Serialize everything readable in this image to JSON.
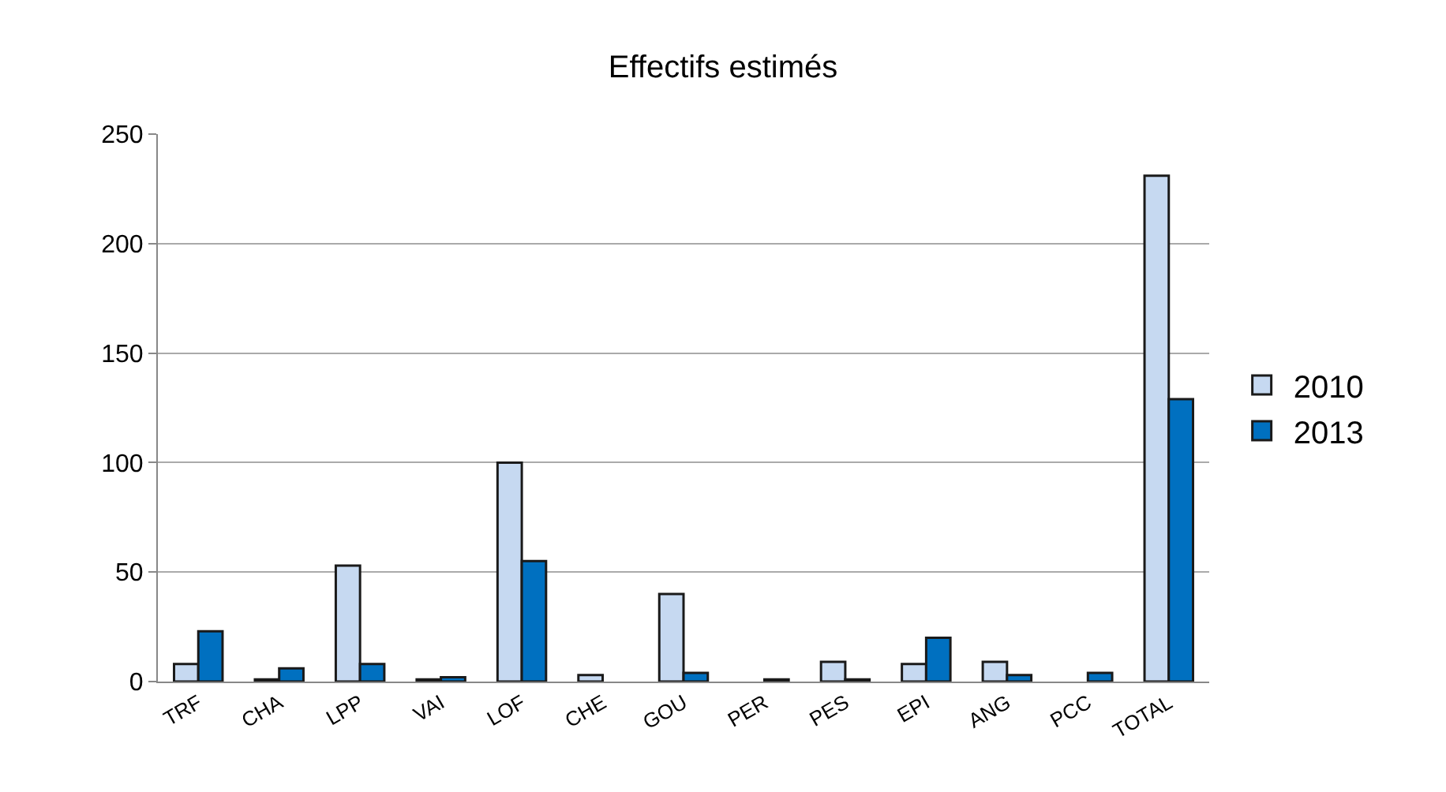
{
  "chart_data": {
    "type": "bar",
    "title": "Effectifs estimés",
    "categories": [
      "TRF",
      "CHA",
      "LPP",
      "VAI",
      "LOF",
      "CHE",
      "GOU",
      "PER",
      "PES",
      "EPI",
      "ANG",
      "PCC",
      "TOTAL"
    ],
    "series": [
      {
        "name": "2010",
        "color": "#c6d9f1",
        "values": [
          8,
          1,
          53,
          1,
          100,
          3,
          40,
          null,
          9,
          8,
          9,
          null,
          231
        ]
      },
      {
        "name": "2013",
        "color": "#0070c0",
        "values": [
          23,
          6,
          8,
          2,
          55,
          null,
          4,
          1,
          1,
          20,
          3,
          4,
          129
        ]
      }
    ],
    "ylim": [
      0,
      250
    ],
    "yticks": [
      0,
      50,
      100,
      150,
      200,
      250
    ],
    "grid": "y",
    "legend": "right"
  }
}
